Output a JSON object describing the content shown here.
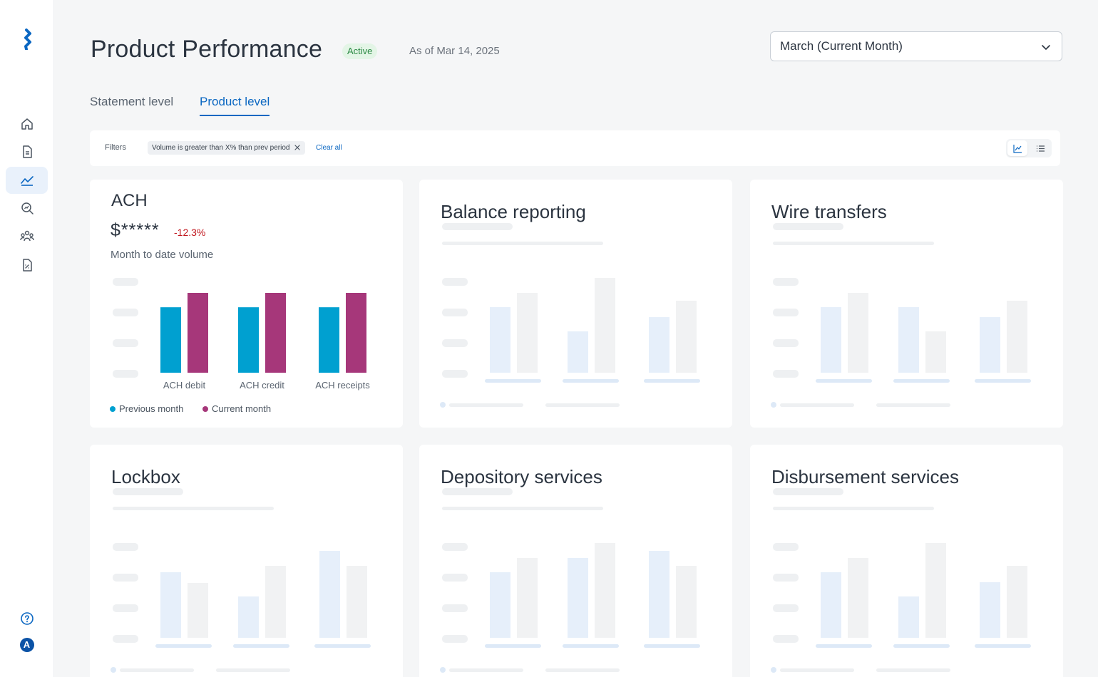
{
  "header": {
    "title": "Product Performance",
    "status": "Active",
    "as_of": "As of Mar 14, 2025",
    "period_select": "March (Current Month)"
  },
  "tabs": [
    {
      "label": "Statement level",
      "active": false
    },
    {
      "label": "Product level",
      "active": true
    }
  ],
  "filters": {
    "label": "Filters",
    "chips": [
      "Volume is greater than X% than prev period"
    ],
    "clear_label": "Clear all"
  },
  "sidebar": {
    "items": [
      "home-icon",
      "document-icon",
      "chart-icon",
      "search-analytics-icon",
      "users-icon",
      "report-icon"
    ],
    "active": "chart-icon",
    "bottom": [
      "help-icon",
      "avatar"
    ],
    "avatar_initial": "A"
  },
  "cards": [
    {
      "title": "ACH",
      "loaded": true
    },
    {
      "title": "Balance reporting",
      "loaded": false
    },
    {
      "title": "Wire transfers",
      "loaded": false
    },
    {
      "title": "Lockbox",
      "loaded": false
    },
    {
      "title": "Depository services",
      "loaded": false
    },
    {
      "title": "Disbursement services",
      "loaded": false
    }
  ],
  "ach": {
    "value": "$*****",
    "change": "-12.3%",
    "subtitle": "Month to date volume"
  },
  "chart_data": {
    "type": "bar",
    "title": "ACH",
    "categories": [
      "ACH debit",
      "ACH credit",
      "ACH receipts"
    ],
    "series": [
      {
        "name": "Previous month",
        "color": "#00a0d0",
        "values": [
          0.82,
          0.82,
          0.82
        ]
      },
      {
        "name": "Current month",
        "color": "#a6377a",
        "values": [
          1.0,
          1.0,
          1.0
        ]
      }
    ],
    "ylim": [
      0,
      1
    ],
    "legend_position": "bottom-left",
    "grid": false
  },
  "colors": {
    "accent": "#0b67c2",
    "status_active": "#2d8a45",
    "negative": "#c0161d"
  }
}
